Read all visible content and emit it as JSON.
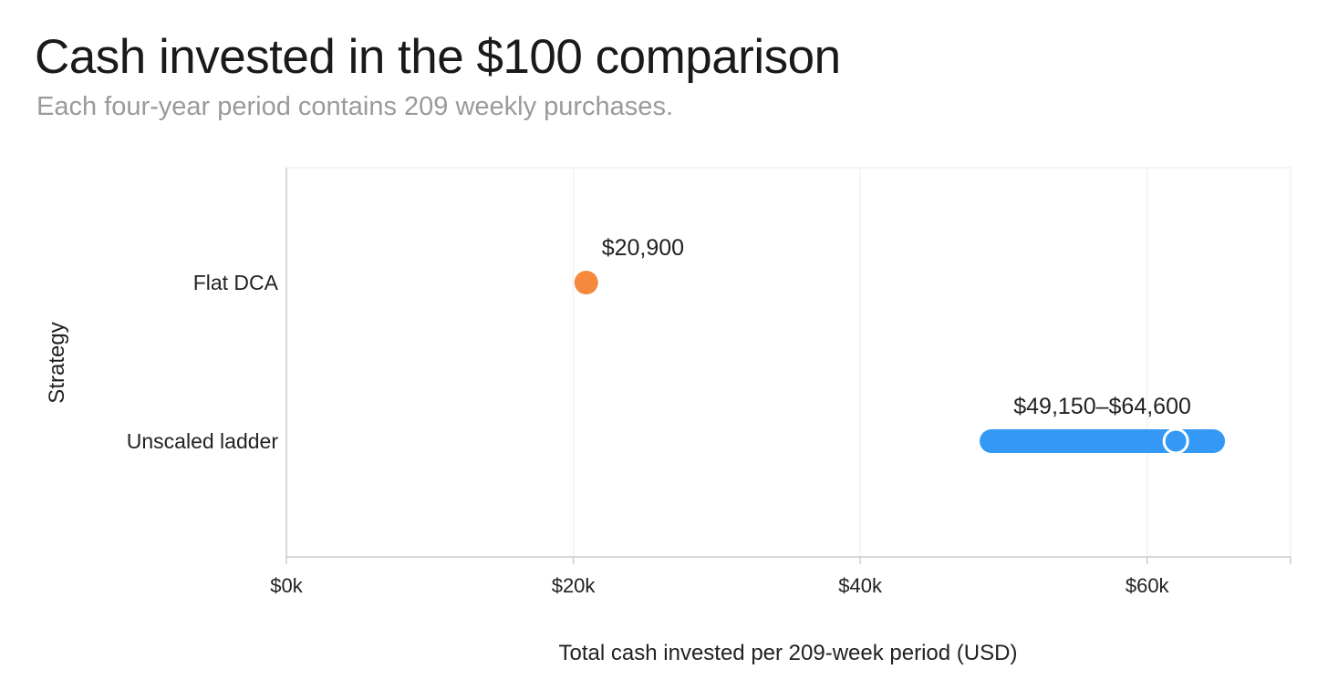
{
  "header": {
    "title": "Cash invested in the $100 comparison",
    "subtitle": "Each four-year period contains 209 weekly purchases."
  },
  "chart_data": {
    "type": "range-dot",
    "xlabel": "Total cash invested per 209-week period (USD)",
    "ylabel": "Strategy",
    "xlim": [
      0,
      70000
    ],
    "xticks": [
      {
        "value": 0,
        "label": "$0k"
      },
      {
        "value": 20000,
        "label": "$20k"
      },
      {
        "value": 40000,
        "label": "$40k"
      },
      {
        "value": 60000,
        "label": "$60k"
      }
    ],
    "grid": true,
    "categories": [
      "Flat DCA",
      "Unscaled ladder"
    ],
    "series": [
      {
        "category": "Flat DCA",
        "kind": "point",
        "value": 20900,
        "label": "$20,900",
        "color": "#f58a3c"
      },
      {
        "category": "Unscaled ladder",
        "kind": "range",
        "min": 49150,
        "max": 64600,
        "marker": 62000,
        "label": "$49,150–$64,600",
        "color": "#3399f5"
      }
    ]
  }
}
